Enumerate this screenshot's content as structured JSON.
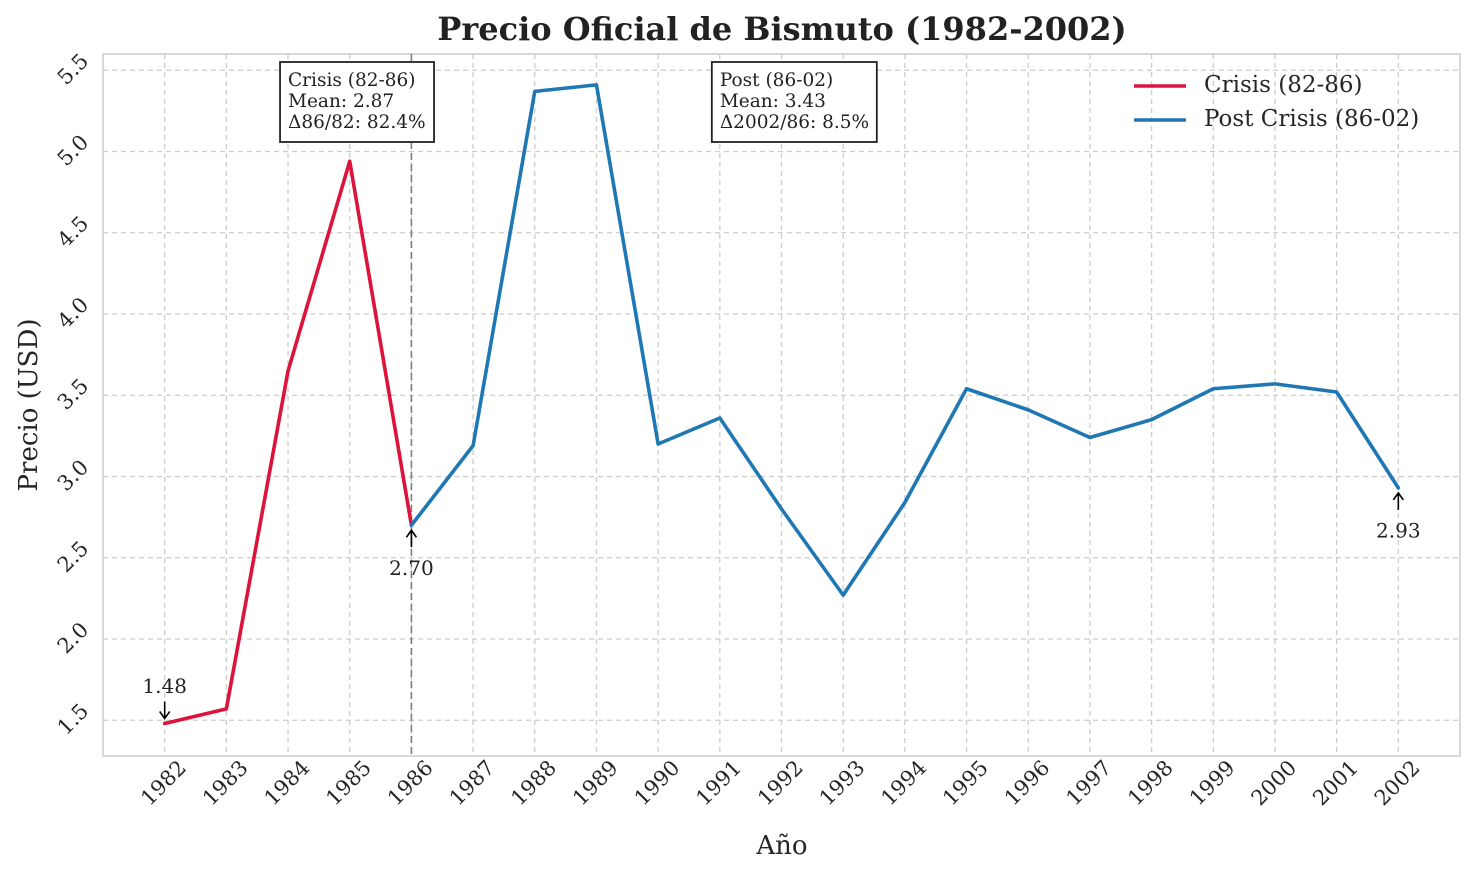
{
  "chart_data": {
    "type": "line",
    "title": "Precio Oficial de Bismuto (1982-2002)",
    "xlabel": "Año",
    "ylabel": "Precio (USD)",
    "x": [
      1982,
      1983,
      1984,
      1985,
      1986,
      1987,
      1988,
      1989,
      1990,
      1991,
      1992,
      1993,
      1994,
      1995,
      1996,
      1997,
      1998,
      1999,
      2000,
      2001,
      2002
    ],
    "xticks": [
      "1982",
      "1983",
      "1984",
      "1985",
      "1986",
      "1987",
      "1988",
      "1989",
      "1990",
      "1991",
      "1992",
      "1993",
      "1994",
      "1995",
      "1996",
      "1997",
      "1998",
      "1999",
      "2000",
      "2001",
      "2002"
    ],
    "yticks": [
      "1.5",
      "2.0",
      "2.5",
      "3.0",
      "3.5",
      "4.0",
      "4.5",
      "5.0",
      "5.5"
    ],
    "ytick_values": [
      1.5,
      2.0,
      2.5,
      3.0,
      3.5,
      4.0,
      4.5,
      5.0,
      5.5
    ],
    "xlim": [
      1981,
      2003
    ],
    "ylim": [
      1.28,
      5.6
    ],
    "grid": true,
    "legend_position": "top-right",
    "series": [
      {
        "name": "Crisis (82-86)",
        "color": "#dc143c",
        "x": [
          1982,
          1983,
          1984,
          1985,
          1986
        ],
        "values": [
          1.48,
          1.57,
          3.65,
          4.94,
          2.7
        ]
      },
      {
        "name": "Post Crisis (86-02)",
        "color": "#1f77b4",
        "x": [
          1986,
          1987,
          1988,
          1989,
          1990,
          1991,
          1992,
          1993,
          1994,
          1995,
          1996,
          1997,
          1998,
          1999,
          2000,
          2001,
          2002
        ],
        "values": [
          2.7,
          3.19,
          5.37,
          5.41,
          3.2,
          3.36,
          2.8,
          2.27,
          2.84,
          3.54,
          3.41,
          3.24,
          3.35,
          3.54,
          3.57,
          3.52,
          2.93
        ]
      }
    ],
    "vertical_line": {
      "x": 1986,
      "color": "#808080"
    },
    "point_annotations": [
      {
        "x": 1982,
        "y": 1.48,
        "label": "1.48",
        "placement": "above"
      },
      {
        "x": 1986,
        "y": 2.7,
        "label": "2.70",
        "placement": "below"
      },
      {
        "x": 2002,
        "y": 2.93,
        "label": "2.93",
        "placement": "below"
      }
    ],
    "stat_boxes": [
      {
        "anchor_x": 1984,
        "lines": [
          "Crisis (82-86)",
          "Mean: 2.87",
          "Δ86/82: 82.4%"
        ]
      },
      {
        "anchor_x": 1991,
        "lines": [
          "Post (86-02)",
          "Mean: 3.43",
          "Δ2002/86: 8.5%"
        ]
      }
    ]
  }
}
